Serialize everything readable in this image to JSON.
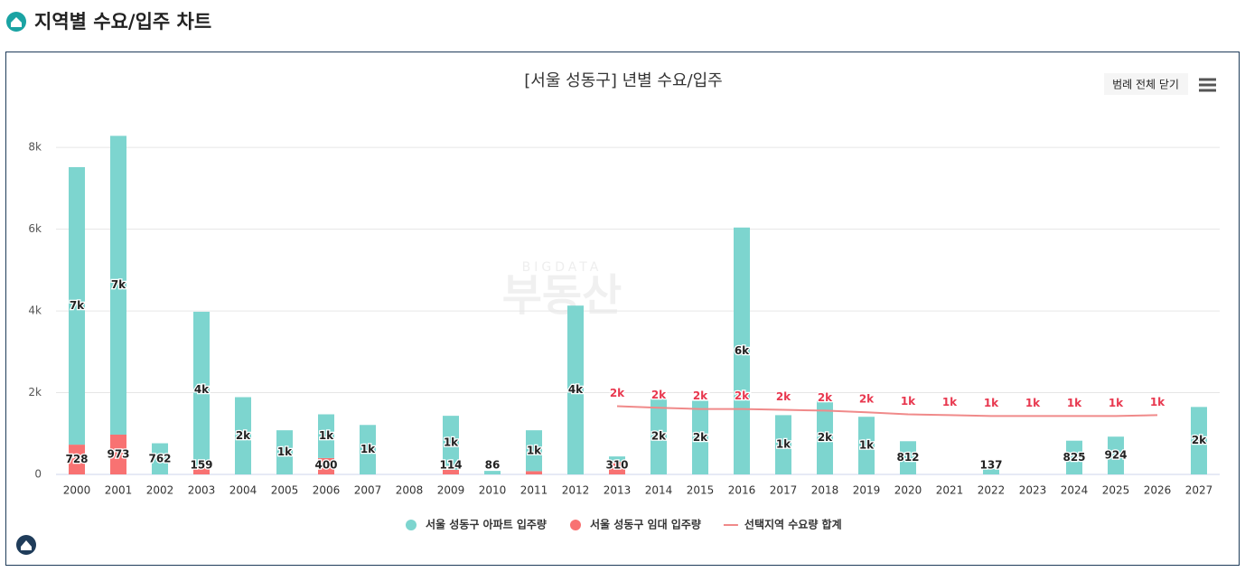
{
  "header": {
    "title": "지역별 수요/입주 차트"
  },
  "button": "범례 전체 닫기",
  "watermark": [
    "BIGDATA",
    "부동산"
  ],
  "chart_data": {
    "type": "bar",
    "stacked": true,
    "title": "[서울 성동구] 년별 수요/입주",
    "categories": [
      "2000",
      "2001",
      "2002",
      "2003",
      "2004",
      "2005",
      "2006",
      "2007",
      "2008",
      "2009",
      "2010",
      "2011",
      "2012",
      "2013",
      "2014",
      "2015",
      "2016",
      "2017",
      "2018",
      "2019",
      "2020",
      "2021",
      "2022",
      "2023",
      "2024",
      "2025",
      "2026",
      "2027"
    ],
    "series": [
      {
        "name": "서울 성동구 아파트 입주량",
        "color": "#7dd5cf",
        "values": [
          6790,
          7310,
          762,
          3820,
          1890,
          1080,
          1070,
          1210,
          null,
          1320,
          86,
          1000,
          4130,
          130,
          1850,
          1800,
          6040,
          1450,
          1800,
          1410,
          812,
          null,
          137,
          null,
          825,
          924,
          null,
          1650
        ],
        "value_labels": [
          "7k",
          "7k",
          "762",
          "4k",
          "2k",
          "1k",
          "1k",
          "1k",
          null,
          "1k",
          "86",
          "1k",
          "4k",
          null,
          "2k",
          "2k",
          "6k",
          "1k",
          "2k",
          "1k",
          "812",
          null,
          "137",
          null,
          "825",
          "924",
          null,
          "2k"
        ]
      },
      {
        "name": "서울 성동구 임대 입주량",
        "color": "#f87272",
        "values": [
          728,
          973,
          null,
          159,
          null,
          null,
          400,
          null,
          null,
          114,
          null,
          80,
          null,
          310,
          null,
          null,
          null,
          null,
          null,
          null,
          null,
          null,
          null,
          null,
          null,
          null,
          null,
          null
        ],
        "value_labels": [
          "728",
          "973",
          null,
          "159",
          null,
          null,
          "400",
          null,
          null,
          "114",
          null,
          null,
          null,
          "310",
          null,
          null,
          null,
          null,
          null,
          null,
          null,
          null,
          null,
          null,
          null,
          null,
          null,
          null
        ]
      },
      {
        "name": "선택지역 수요량 합계",
        "color": "#f08a8a",
        "type": "line",
        "label_color": "#e8384f",
        "values": [
          null,
          null,
          null,
          null,
          null,
          null,
          null,
          null,
          null,
          null,
          null,
          null,
          null,
          1670,
          1630,
          1600,
          1600,
          1580,
          1560,
          1520,
          1470,
          1450,
          1430,
          1430,
          1430,
          1430,
          1450,
          null
        ],
        "value_labels": [
          null,
          null,
          null,
          null,
          null,
          null,
          null,
          null,
          null,
          null,
          null,
          null,
          null,
          "2k",
          "2k",
          "2k",
          "2k",
          "2k",
          "2k",
          "2k",
          "1k",
          "1k",
          "1k",
          "1k",
          "1k",
          "1k",
          "1k",
          null
        ]
      }
    ],
    "ylim": [
      0,
      8600
    ],
    "yticks": [
      0,
      {
        "value": 2000,
        "label": "2k"
      },
      {
        "value": 4000,
        "label": "4k"
      },
      {
        "value": 6000,
        "label": "6k"
      },
      {
        "value": 8000,
        "label": "8k"
      }
    ],
    "grid": true,
    "legend": "bottom"
  }
}
